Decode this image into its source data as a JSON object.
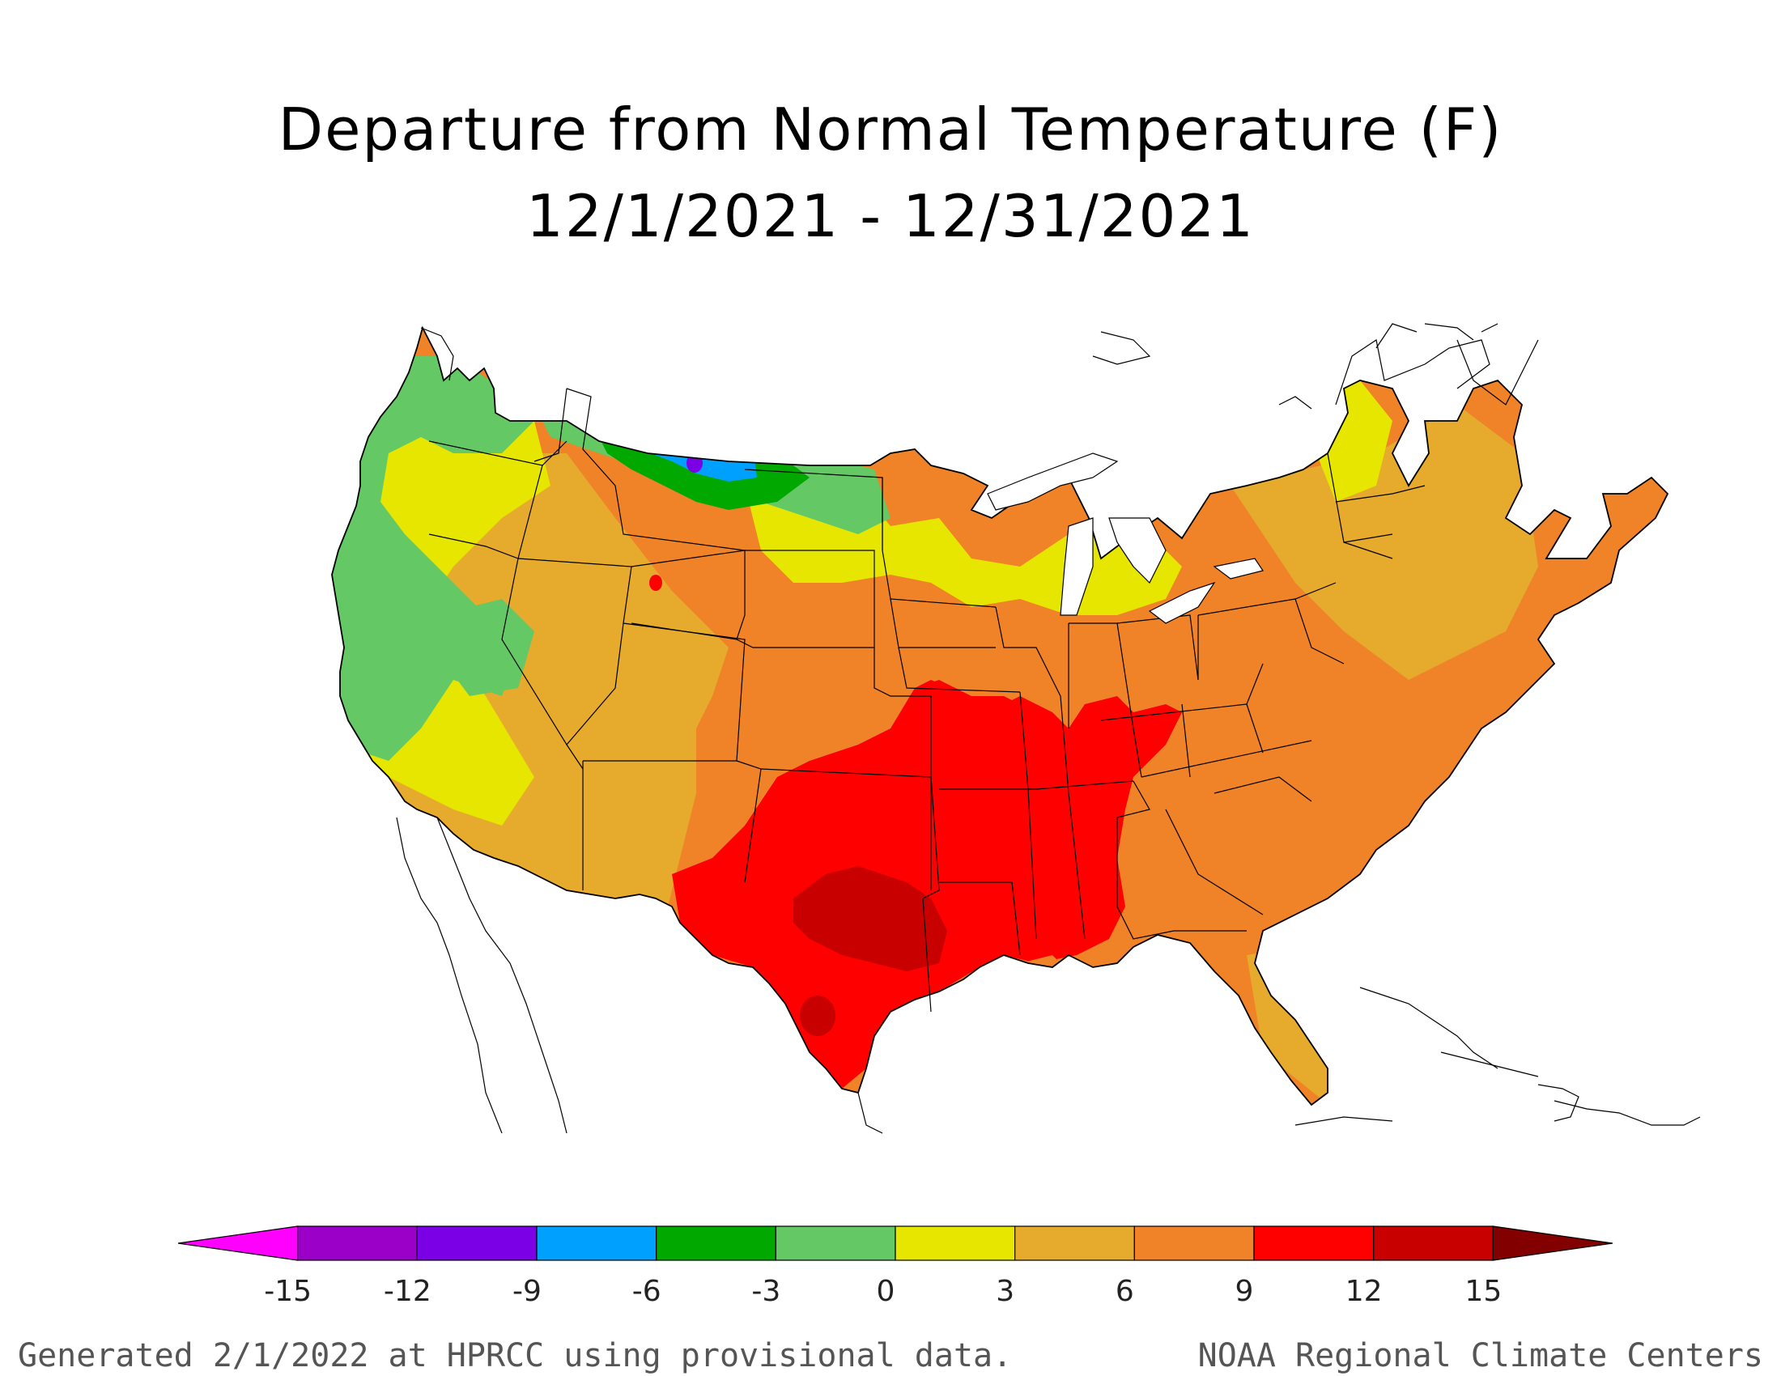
{
  "title": "Departure from Normal Temperature (F)",
  "subtitle": "12/1/2021 - 12/31/2021",
  "footer_left": "Generated 2/1/2022 at HPRCC using provisional data.",
  "footer_right": "NOAA Regional Climate Centers",
  "legend": {
    "bins": [
      {
        "color": "#ff00ff"
      },
      {
        "color": "#9a00c8"
      },
      {
        "color": "#7b00e6"
      },
      {
        "color": "#00a0ff"
      },
      {
        "color": "#00a800"
      },
      {
        "color": "#64c864"
      },
      {
        "color": "#e6e600"
      },
      {
        "color": "#e6aa2d"
      },
      {
        "color": "#f08228"
      },
      {
        "color": "#ff0000"
      },
      {
        "color": "#c80000"
      },
      {
        "color": "#820000"
      }
    ],
    "ticks": [
      "-15",
      "-12",
      "-9",
      "-6",
      "-3",
      "0",
      "3",
      "6",
      "9",
      "12",
      "15"
    ]
  },
  "map_colors": {
    "cool_green": "#64c864",
    "green": "#00a800",
    "blue": "#00a0ff",
    "purple": "#7b00e6",
    "yellow": "#e6e600",
    "light_orange": "#e6aa2d",
    "orange": "#f08228",
    "red": "#ff0000",
    "dark_red": "#c80000"
  }
}
